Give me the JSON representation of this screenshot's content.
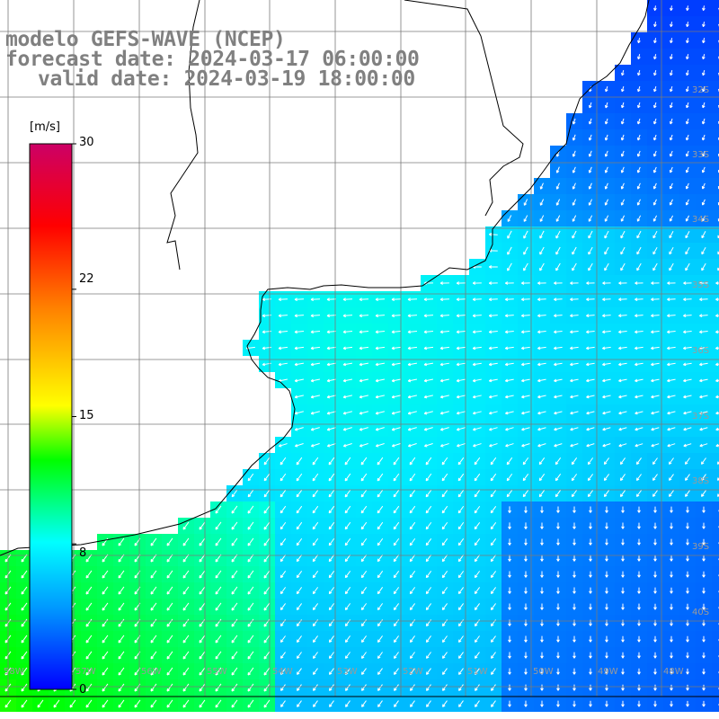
{
  "map": {
    "model": "GEFS-WAVE",
    "title_line_1": "modelo GEFS-WAVE (NCEP)",
    "title_line_2": "forecast date: 2024-03-17 06:00:00",
    "title_line_3": "valid date: 2024-03-19 18:00:00",
    "variable": "wind speed with direction arrows",
    "grid": true,
    "land_color": "#ffffff",
    "coastline_color": "#000000"
  },
  "colorbar": {
    "unit": "[m/s]",
    "min": 0,
    "max": 30,
    "ticks": [
      "30",
      "22",
      "15",
      "8",
      "0"
    ],
    "tick_values": [
      30,
      22,
      15,
      8,
      0
    ],
    "colors": [
      "#0000ff",
      "#0099ff",
      "#00ffff",
      "#00ff00",
      "#ffff00",
      "#ff8000",
      "#ff0000",
      "#cc0066"
    ]
  },
  "latitude_labels": [
    "32S",
    "33S",
    "34S",
    "35S",
    "36S",
    "37S",
    "38S",
    "39S",
    "40S"
  ],
  "longitude_labels": [
    "58W",
    "57W",
    "56W",
    "55W",
    "54W",
    "53W",
    "52W",
    "51W",
    "50W",
    "49W",
    "48W"
  ]
}
